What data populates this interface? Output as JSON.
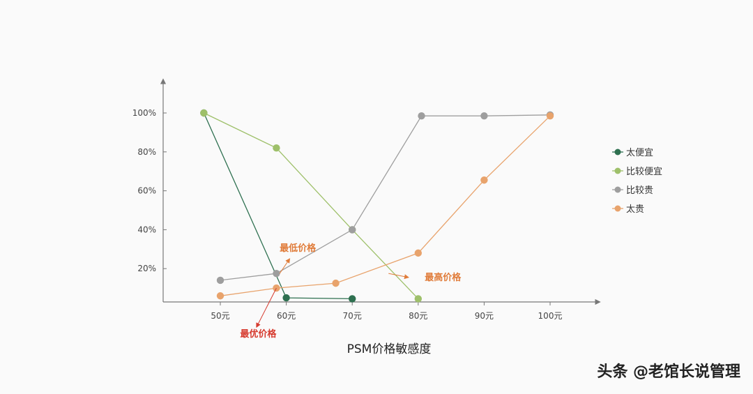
{
  "chart_data": {
    "type": "line",
    "title": "PSM价格敏感度",
    "xlabel": "",
    "ylabel": "",
    "x_tick_labels": [
      "50元",
      "60元",
      "70元",
      "80元",
      "90元",
      "100元"
    ],
    "y_tick_labels": [
      "20%",
      "40%",
      "60%",
      "80%",
      "100%"
    ],
    "y_ticks": [
      20,
      40,
      60,
      80,
      100
    ],
    "x_range": [
      40,
      105
    ],
    "y_range": [
      0,
      110
    ],
    "grid": false,
    "legend_position": "right",
    "series": [
      {
        "name": "太便宜",
        "color": "#2e7050",
        "points": [
          [
            47.5,
            100
          ],
          [
            60,
            5
          ],
          [
            70,
            4.5
          ]
        ]
      },
      {
        "name": "比较便宜",
        "color": "#9ec06a",
        "points": [
          [
            47.5,
            100
          ],
          [
            58.5,
            82
          ],
          [
            70,
            40
          ],
          [
            80,
            4.5
          ]
        ]
      },
      {
        "name": "比较贵",
        "color": "#9e9e9e",
        "points": [
          [
            50,
            14
          ],
          [
            58.5,
            17.5
          ],
          [
            70,
            40
          ],
          [
            80.5,
            98.5
          ],
          [
            90,
            98.5
          ],
          [
            100,
            99
          ]
        ]
      },
      {
        "name": "太贵",
        "color": "#e8a36c",
        "points": [
          [
            50,
            6
          ],
          [
            58.5,
            10
          ],
          [
            67.5,
            12.5
          ],
          [
            80,
            28
          ],
          [
            90,
            65.5
          ],
          [
            100,
            98.5
          ]
        ]
      }
    ],
    "annotations": [
      {
        "text": "最低价格",
        "color": "#e07c3a",
        "x": 59,
        "y": 29,
        "arrow_from": [
          59,
          17.5
        ],
        "arrow_to": [
          60.5,
          25
        ]
      },
      {
        "text": "最高价格",
        "color": "#e07c3a",
        "x": 81,
        "y": 14,
        "arrow_from": [
          75.5,
          17.5
        ],
        "arrow_to": [
          78.5,
          15.5
        ]
      },
      {
        "text": "最优价格",
        "color": "#d63a2e",
        "x": 53,
        "y": -15,
        "arrow_from": [
          58.5,
          10
        ],
        "arrow_to": [
          55.5,
          -10
        ]
      }
    ]
  },
  "watermark": "头条 @老馆长说管理"
}
